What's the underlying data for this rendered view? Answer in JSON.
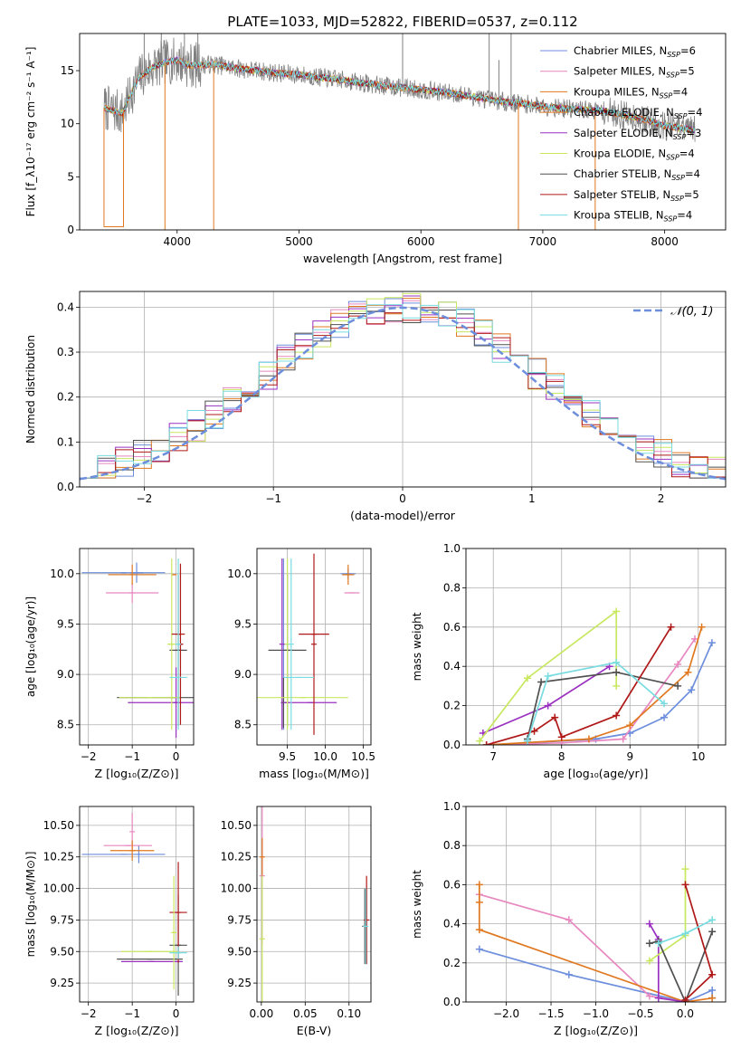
{
  "title": "PLATE=1033, MJD=52822, FIBERID=0537, z=0.112",
  "colors": {
    "chabrier_miles": "#6c8edc",
    "salpeter_miles": "#e888c0",
    "kroupa_miles": "#e07820",
    "chabrier_elodie": "#e07820",
    "salpeter_elodie": "#9a30c0",
    "kroupa_elodie": "#c8e860",
    "chabrier_stelib": "#505050",
    "salpeter_stelib": "#b01818",
    "kroupa_stelib": "#78dce0",
    "data": "#808080",
    "normal": "#6c8edc"
  },
  "chart_data": [
    {
      "type": "line",
      "id": "spectrum",
      "xlabel": "wavelength [Angstrom, rest frame]",
      "ylabel": "Flux [f_λ10⁻¹⁷ erg cm⁻² s⁻¹ A⁻¹]",
      "xlim": [
        3200,
        8500
      ],
      "ylim": [
        0,
        18.5
      ],
      "xticks": [
        "4000",
        "5000",
        "6000",
        "7000",
        "8000"
      ],
      "yticks": [
        "0",
        "5",
        "10",
        "15"
      ],
      "legend_position": "top-right",
      "legend": [
        {
          "label": "Chabrier MILES, N",
          "sub": "SSP",
          "suffix": "=6",
          "color": "#6c8edc"
        },
        {
          "label": "Salpeter MILES, N",
          "sub": "SSP",
          "suffix": "=5",
          "color": "#e888c0"
        },
        {
          "label": "Kroupa MILES, N",
          "sub": "SSP",
          "suffix": "=4",
          "color": "#e07820"
        },
        {
          "label": "Chabrier ELODIE, N",
          "sub": "SSP",
          "suffix": "=4",
          "color": "#e07820"
        },
        {
          "label": "Salpeter ELODIE, N",
          "sub": "SSP",
          "suffix": "=3",
          "color": "#9a30c0"
        },
        {
          "label": "Kroupa ELODIE, N",
          "sub": "SSP",
          "suffix": "=4",
          "color": "#c8e860"
        },
        {
          "label": "Chabrier STELIB, N",
          "sub": "SSP",
          "suffix": "=4",
          "color": "#505050"
        },
        {
          "label": "Salpeter STELIB, N",
          "sub": "SSP",
          "suffix": "=5",
          "color": "#b01818"
        },
        {
          "label": "Kroupa STELIB, N",
          "sub": "SSP",
          "suffix": "=4",
          "color": "#78dce0"
        }
      ],
      "continuum": {
        "x": [
          3400,
          3550,
          3650,
          3700,
          3800,
          3900,
          4000,
          4100,
          4300,
          4500,
          4800,
          5000,
          5300,
          5600,
          6000,
          6300,
          6600,
          6900,
          7200,
          7500,
          7800,
          8000,
          8250
        ],
        "y": [
          11.5,
          11.0,
          13.5,
          14.5,
          15.3,
          15.8,
          16.0,
          15.5,
          15.6,
          15.2,
          14.8,
          14.6,
          14.2,
          13.7,
          13.2,
          12.8,
          12.2,
          11.8,
          11.4,
          11.2,
          10.5,
          9.8,
          9.4
        ]
      },
      "drops": [
        {
          "x": 3400,
          "x_end": 3560,
          "y": 0.3
        },
        {
          "x": 3900,
          "y": 0
        },
        {
          "x": 4300,
          "y": 0
        },
        {
          "x": 6800,
          "y": 0
        },
        {
          "x": 7430,
          "y": 0
        }
      ],
      "spikes": [
        {
          "x": 3730,
          "y": 18.5
        },
        {
          "x": 3870,
          "y": 18.5
        },
        {
          "x": 4060,
          "y": 18.5
        },
        {
          "x": 4170,
          "y": 18.5
        },
        {
          "x": 5850,
          "y": 18.5
        },
        {
          "x": 6560,
          "y": 18.5
        },
        {
          "x": 6640,
          "y": 16.0
        },
        {
          "x": 6740,
          "y": 18.5
        }
      ]
    },
    {
      "type": "bar",
      "id": "residual-hist",
      "xlabel": "(data-model)/error",
      "ylabel": "Normed distribution",
      "xlim": [
        -2.5,
        2.5
      ],
      "ylim": [
        0,
        0.435
      ],
      "xticks": [
        "−2",
        "−1",
        "0",
        "1",
        "2"
      ],
      "yticks": [
        "0.0",
        "0.1",
        "0.2",
        "0.3",
        "0.4"
      ],
      "grid": true,
      "legend_position": "top-right",
      "normal_curve": {
        "label": "𝒩(0, 1)",
        "mean": 0,
        "sigma": 1
      }
    },
    {
      "type": "scatter",
      "id": "age-vs-z",
      "xlabel": "Z [log₁₀(Z/Z⊙)]",
      "ylabel": "age  [log₁₀(age/yr)]",
      "xlim": [
        -2.2,
        0.4
      ],
      "ylim": [
        8.3,
        10.25
      ],
      "xticks": [
        "−2",
        "−1",
        "0"
      ],
      "yticks": [
        "8.5",
        "9.0",
        "9.5",
        "10.0"
      ],
      "grid": true,
      "points": [
        {
          "x": -1.2,
          "y": 10.01,
          "xerr": 0.95,
          "yerr": 0.0,
          "color": "#6c8edc"
        },
        {
          "x": -0.9,
          "y": 10.01,
          "xerr": 0.15,
          "yerr": 0.1,
          "color": "#6c8edc"
        },
        {
          "x": -1.0,
          "y": 9.81,
          "xerr": 0.6,
          "yerr": 0.1,
          "color": "#e888c0"
        },
        {
          "x": -1.0,
          "y": 9.99,
          "xerr": 0.55,
          "yerr": 0.1,
          "color": "#e07820"
        },
        {
          "x": -0.05,
          "y": 9.99,
          "xerr": 0.05,
          "yerr": 0.0,
          "color": "#e07820"
        },
        {
          "x": -0.05,
          "y": 8.77,
          "xerr": 1.3,
          "yerr": 0.0,
          "color": "#505050"
        },
        {
          "x": 0.05,
          "y": 9.24,
          "xerr": 0.2,
          "yerr": 0.75,
          "color": "#505050"
        },
        {
          "x": 0.0,
          "y": 8.72,
          "xerr": 1.1,
          "yerr": 0.0,
          "color": "#9a30c0"
        },
        {
          "x": 0.0,
          "y": 8.72,
          "xerr": 0.05,
          "yerr": 0.35,
          "color": "#9a30c0"
        },
        {
          "x": -0.1,
          "y": 9.3,
          "xerr": 0.1,
          "yerr": 0.85,
          "color": "#c8e860"
        },
        {
          "x": -0.6,
          "y": 8.77,
          "xerr": 0.7,
          "yerr": 0.0,
          "color": "#c8e860"
        },
        {
          "x": 0.05,
          "y": 9.4,
          "xerr": 0.15,
          "yerr": 0.0,
          "color": "#b01818"
        },
        {
          "x": 0.1,
          "y": 9.3,
          "xerr": 0.05,
          "yerr": 0.8,
          "color": "#b01818"
        },
        {
          "x": 0.05,
          "y": 8.97,
          "xerr": 0.2,
          "yerr": 0.0,
          "color": "#78dce0"
        },
        {
          "x": 0.05,
          "y": 9.3,
          "xerr": 0.05,
          "yerr": 0.85,
          "color": "#78dce0"
        }
      ]
    },
    {
      "type": "scatter",
      "id": "age-vs-mass",
      "xlabel": "mass [log₁₀(M/M⊙)]",
      "ylabel": "",
      "xlim": [
        9.1,
        10.6
      ],
      "ylim": [
        8.3,
        10.25
      ],
      "xticks": [
        "9.5",
        "10.0",
        "10.5"
      ],
      "yticks": [
        "8.5",
        "9.0",
        "9.5",
        "10.0"
      ],
      "grid": true,
      "points": [
        {
          "x": 9.45,
          "y": 9.3,
          "xerr": 0.0,
          "yerr": 0.85,
          "color": "#6c8edc"
        },
        {
          "x": 10.3,
          "y": 10.0,
          "xerr": 0.1,
          "yerr": 0.05,
          "color": "#6c8edc"
        },
        {
          "x": 10.35,
          "y": 9.81,
          "xerr": 0.1,
          "yerr": 0.0,
          "color": "#e888c0"
        },
        {
          "x": 10.3,
          "y": 9.99,
          "xerr": 0.08,
          "yerr": 0.1,
          "color": "#e07820"
        },
        {
          "x": 9.5,
          "y": 9.24,
          "xerr": 0.25,
          "yerr": 0.75,
          "color": "#505050"
        },
        {
          "x": 9.45,
          "y": 8.72,
          "xerr": 0.0,
          "yerr": 0.25,
          "color": "#505050"
        },
        {
          "x": 9.8,
          "y": 8.72,
          "xerr": 0.35,
          "yerr": 0.0,
          "color": "#9a30c0"
        },
        {
          "x": 9.43,
          "y": 9.3,
          "xerr": 0.0,
          "yerr": 0.85,
          "color": "#9a30c0"
        },
        {
          "x": 9.7,
          "y": 8.77,
          "xerr": 0.6,
          "yerr": 0.0,
          "color": "#c8e860"
        },
        {
          "x": 9.5,
          "y": 9.3,
          "xerr": 0.0,
          "yerr": 0.85,
          "color": "#c8e860"
        },
        {
          "x": 9.85,
          "y": 9.4,
          "xerr": 0.2,
          "yerr": 0.0,
          "color": "#b01818"
        },
        {
          "x": 9.85,
          "y": 9.3,
          "xerr": 0.0,
          "yerr": 0.9,
          "color": "#b01818"
        },
        {
          "x": 9.65,
          "y": 8.97,
          "xerr": 0.2,
          "yerr": 0.0,
          "color": "#78dce0"
        },
        {
          "x": 9.55,
          "y": 9.3,
          "xerr": 0.0,
          "yerr": 0.85,
          "color": "#78dce0"
        }
      ]
    },
    {
      "type": "line",
      "id": "mass-weight-vs-age",
      "xlabel": "age  [log₁₀(age/yr)]",
      "ylabel": "mass weight",
      "xlim": [
        6.6,
        10.4
      ],
      "ylim": [
        0,
        1.0
      ],
      "xticks": [
        "7",
        "8",
        "9",
        "10"
      ],
      "yticks": [
        "0.0",
        "0.2",
        "0.4",
        "0.6",
        "0.8",
        "1.0"
      ],
      "grid": true,
      "series": [
        {
          "color": "#6c8edc",
          "x": [
            7.5,
            8.5,
            9.0,
            9.5,
            9.9,
            10.2
          ],
          "y": [
            0.01,
            0.03,
            0.06,
            0.14,
            0.28,
            0.52
          ]
        },
        {
          "color": "#e888c0",
          "x": [
            7.0,
            8.0,
            8.9,
            9.7,
            9.95
          ],
          "y": [
            0.0,
            0.01,
            0.03,
            0.41,
            0.54
          ]
        },
        {
          "color": "#e07820",
          "x": [
            6.9,
            8.4,
            9.0,
            9.85,
            10.05
          ],
          "y": [
            0.0,
            0.03,
            0.1,
            0.37,
            0.6
          ]
        },
        {
          "color": "#9a30c0",
          "x": [
            6.85,
            7.8,
            8.7
          ],
          "y": [
            0.06,
            0.2,
            0.4
          ]
        },
        {
          "color": "#c8e860",
          "x": [
            6.8,
            7.5,
            8.8,
            8.8
          ],
          "y": [
            0.02,
            0.34,
            0.68,
            0.3
          ]
        },
        {
          "color": "#505050",
          "x": [
            7.5,
            7.7,
            8.8,
            9.7
          ],
          "y": [
            0.03,
            0.32,
            0.37,
            0.3
          ]
        },
        {
          "color": "#b01818",
          "x": [
            6.9,
            7.6,
            7.9,
            8.0,
            8.8,
            9.6
          ],
          "y": [
            0.0,
            0.07,
            0.14,
            0.04,
            0.15,
            0.6
          ]
        },
        {
          "color": "#78dce0",
          "x": [
            7.5,
            7.8,
            8.8,
            9.5
          ],
          "y": [
            0.02,
            0.35,
            0.42,
            0.21
          ]
        }
      ]
    },
    {
      "type": "scatter",
      "id": "mass-vs-z",
      "xlabel": "Z [log₁₀(Z/Z⊙)]",
      "ylabel": "mass [log₁₀(M/M⊙)]",
      "xlim": [
        -2.2,
        0.4
      ],
      "ylim": [
        9.1,
        10.65
      ],
      "xticks": [
        "−2",
        "−1",
        "0"
      ],
      "yticks": [
        "9.25",
        "9.50",
        "9.75",
        "10.00",
        "10.25",
        "10.50"
      ],
      "grid": true,
      "points": [
        {
          "x": -1.2,
          "y": 10.27,
          "xerr": 0.95,
          "yerr": 0.0,
          "color": "#6c8edc"
        },
        {
          "x": -0.85,
          "y": 10.27,
          "xerr": 0.0,
          "yerr": 0.07,
          "color": "#6c8edc"
        },
        {
          "x": -1.1,
          "y": 10.34,
          "xerr": 0.55,
          "yerr": 0.0,
          "color": "#e888c0"
        },
        {
          "x": -1.0,
          "y": 10.45,
          "xerr": 0.0,
          "yerr": 0.15,
          "color": "#e888c0"
        },
        {
          "x": -1.0,
          "y": 10.3,
          "xerr": 0.5,
          "yerr": 0.08,
          "color": "#e07820"
        },
        {
          "x": 0.05,
          "y": 9.55,
          "xerr": 0.2,
          "yerr": 0.4,
          "color": "#505050"
        },
        {
          "x": -0.6,
          "y": 9.44,
          "xerr": 0.75,
          "yerr": 0.0,
          "color": "#505050"
        },
        {
          "x": -0.55,
          "y": 9.42,
          "xerr": 0.7,
          "yerr": 0.0,
          "color": "#9a30c0"
        },
        {
          "x": 0.05,
          "y": 9.81,
          "xerr": 0.2,
          "yerr": 0.4,
          "color": "#b01818"
        },
        {
          "x": -0.6,
          "y": 9.5,
          "xerr": 0.65,
          "yerr": 0.0,
          "color": "#c8e860"
        },
        {
          "x": -0.05,
          "y": 9.65,
          "xerr": 0.05,
          "yerr": 0.45,
          "color": "#c8e860"
        },
        {
          "x": 0.05,
          "y": 9.49,
          "xerr": 0.2,
          "yerr": 0.05,
          "color": "#78dce0"
        }
      ]
    },
    {
      "type": "scatter",
      "id": "mass-vs-ebv",
      "xlabel": "E(B-V)",
      "ylabel": "",
      "xlim": [
        -0.005,
        0.125
      ],
      "ylim": [
        9.1,
        10.65
      ],
      "xticks": [
        "0.00",
        "0.05",
        "0.10"
      ],
      "yticks": [
        "9.25",
        "9.50",
        "9.75",
        "10.00",
        "10.25",
        "10.50"
      ],
      "grid": true,
      "points": [
        {
          "x": 0.001,
          "y": 10.1,
          "xerr": 0.0,
          "yerr": 0.55,
          "color": "#e888c0"
        },
        {
          "x": 0.001,
          "y": 10.25,
          "xerr": 0.0,
          "yerr": 0.15,
          "color": "#e07820"
        },
        {
          "x": 0.001,
          "y": 9.6,
          "xerr": 0.0,
          "yerr": 0.5,
          "color": "#c8e860"
        },
        {
          "x": 0.118,
          "y": 9.7,
          "xerr": 0.0,
          "yerr": 0.3,
          "color": "#505050"
        },
        {
          "x": 0.12,
          "y": 9.75,
          "xerr": 0.0,
          "yerr": 0.35,
          "color": "#b01818"
        },
        {
          "x": 0.119,
          "y": 9.7,
          "xerr": 0.0,
          "yerr": 0.3,
          "color": "#78dce0"
        }
      ]
    },
    {
      "type": "line",
      "id": "mass-weight-vs-z",
      "xlabel": "Z [log₁₀(Z/Z⊙)]",
      "ylabel": "mass weight",
      "xlim": [
        -2.45,
        0.45
      ],
      "ylim": [
        0,
        1.0
      ],
      "xticks": [
        "−2.0",
        "−1.5",
        "−1.0",
        "−0.5",
        "0.0"
      ],
      "yticks": [
        "0.0",
        "0.2",
        "0.4",
        "0.6",
        "0.8",
        "1.0"
      ],
      "grid": true,
      "series": [
        {
          "color": "#6c8edc",
          "x": [
            -2.3,
            -1.3,
            0.0,
            0.3,
            0.3
          ],
          "y": [
            0.27,
            0.14,
            0.0,
            0.06,
            0.02
          ]
        },
        {
          "color": "#e888c0",
          "x": [
            -2.3,
            -1.3,
            -0.4,
            0.0
          ],
          "y": [
            0.55,
            0.42,
            0.03,
            0.0
          ]
        },
        {
          "color": "#e07820",
          "x": [
            -2.3,
            -2.3,
            -2.3,
            0.0,
            0.3
          ],
          "y": [
            0.6,
            0.51,
            0.37,
            0.0,
            0.02
          ]
        },
        {
          "color": "#9a30c0",
          "x": [
            -0.4,
            -0.3,
            -0.3,
            0.0
          ],
          "y": [
            0.4,
            0.32,
            0.02,
            0.0
          ]
        },
        {
          "color": "#c8e860",
          "x": [
            -0.4,
            0.0,
            0.0
          ],
          "y": [
            0.21,
            0.34,
            0.68
          ]
        },
        {
          "color": "#505050",
          "x": [
            -0.4,
            -0.3,
            0.0,
            0.3
          ],
          "y": [
            0.3,
            0.31,
            0.0,
            0.36
          ]
        },
        {
          "color": "#b01818",
          "x": [
            0.0,
            0.3,
            0.0,
            0.0
          ],
          "y": [
            0.6,
            0.14,
            0.01,
            0.0
          ]
        },
        {
          "color": "#78dce0",
          "x": [
            -0.3,
            0.0,
            0.3
          ],
          "y": [
            0.3,
            0.35,
            0.42
          ]
        }
      ]
    }
  ]
}
